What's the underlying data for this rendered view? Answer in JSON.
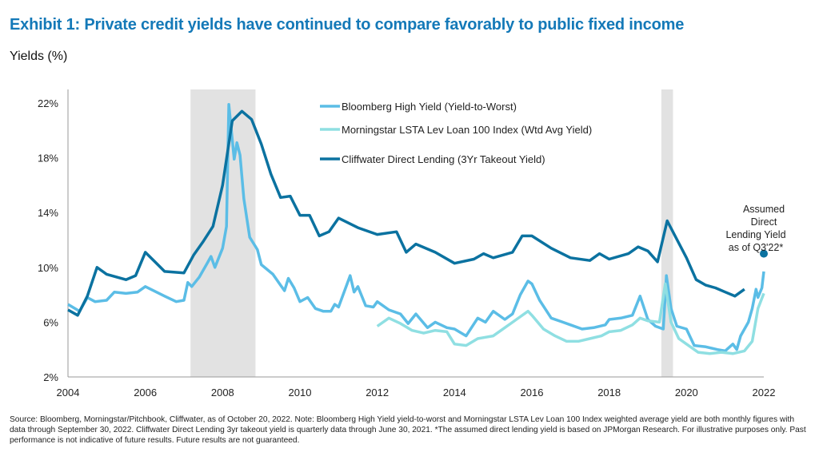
{
  "title": "Exhibit 1: Private credit yields have continued to compare favorably to public fixed income",
  "ylabel": "Yields (%)",
  "footnote": "Source: Bloomberg, Morningstar/Pitchbook, Cliffwater, as of October 20, 2022. Note: Bloomberg High Yield yield-to-worst and Morningstar LSTA Lev Loan 100 Index weighted average yield are both monthly figures with data through September 30, 2022. Cliffwater Direct Lending 3yr takeout yield is quarterly data through June 30, 2021. *The assumed direct lending yield is based on JPMorgan Research. For illustrative purposes only. Past performance is not indicative of future results. Future results are not guaranteed.",
  "chart_data": {
    "type": "line",
    "title": "Exhibit 1: Private credit yields have continued to compare favorably to public fixed income",
    "ylabel": "Yields (%)",
    "xlim": [
      2004,
      2022
    ],
    "ylim": [
      2,
      22
    ],
    "x_ticks": [
      "2004",
      "2006",
      "2008",
      "2010",
      "2012",
      "2014",
      "2016",
      "2018",
      "2020",
      "2022"
    ],
    "y_ticks": [
      "2%",
      "6%",
      "10%",
      "14%",
      "18%",
      "22%"
    ],
    "grid": false,
    "legend": "top-center",
    "shaded_periods": [
      [
        2007.17,
        2008.85
      ],
      [
        2019.35,
        2019.65
      ]
    ],
    "series": [
      {
        "name": "Bloomberg High Yield (Yield-to-Worst)",
        "color": "#5bbde6",
        "x": [
          2004.0,
          2004.3,
          2004.5,
          2004.7,
          2005.0,
          2005.2,
          2005.5,
          2005.8,
          2006.0,
          2006.5,
          2006.8,
          2007.0,
          2007.1,
          2007.2,
          2007.4,
          2007.6,
          2007.7,
          2007.8,
          2008.0,
          2008.1,
          2008.16,
          2008.3,
          2008.37,
          2008.45,
          2008.55,
          2008.7,
          2008.9,
          2009.0,
          2009.3,
          2009.5,
          2009.6,
          2009.7,
          2009.85,
          2010.0,
          2010.2,
          2010.4,
          2010.6,
          2010.8,
          2010.9,
          2011.0,
          2011.3,
          2011.4,
          2011.5,
          2011.7,
          2011.9,
          2012.0,
          2012.3,
          2012.6,
          2012.8,
          2013.0,
          2013.3,
          2013.5,
          2013.8,
          2014.0,
          2014.3,
          2014.6,
          2014.8,
          2015.0,
          2015.3,
          2015.5,
          2015.7,
          2015.9,
          2016.0,
          2016.2,
          2016.5,
          2016.8,
          2017.0,
          2017.3,
          2017.6,
          2017.9,
          2018.0,
          2018.3,
          2018.6,
          2018.8,
          2019.0,
          2019.2,
          2019.4,
          2019.48,
          2019.6,
          2019.75,
          2020.0,
          2020.2,
          2020.5,
          2020.8,
          2021.0,
          2021.2,
          2021.3,
          2021.4,
          2021.6,
          2021.7,
          2021.8,
          2021.85,
          2021.95,
          2022.0
        ],
        "values": [
          7.3,
          6.8,
          7.8,
          7.5,
          7.6,
          8.2,
          8.1,
          8.2,
          8.6,
          7.9,
          7.5,
          7.6,
          8.9,
          8.6,
          9.3,
          10.3,
          10.8,
          10.0,
          11.4,
          13.0,
          21.9,
          17.9,
          19.1,
          18.2,
          15.0,
          12.2,
          11.3,
          10.2,
          9.5,
          8.7,
          8.3,
          9.2,
          8.5,
          7.5,
          7.8,
          7.0,
          6.8,
          6.8,
          7.3,
          7.1,
          9.4,
          8.2,
          8.6,
          7.2,
          7.1,
          7.5,
          6.9,
          6.6,
          5.9,
          6.6,
          5.6,
          6.0,
          5.6,
          5.5,
          5.0,
          6.3,
          6.0,
          6.8,
          6.2,
          6.6,
          8.0,
          9.0,
          8.8,
          7.6,
          6.3,
          6.0,
          5.8,
          5.5,
          5.6,
          5.8,
          6.2,
          6.3,
          6.5,
          7.9,
          6.2,
          5.7,
          5.5,
          9.4,
          7.0,
          5.7,
          5.5,
          4.3,
          4.2,
          4.0,
          3.9,
          4.4,
          4.0,
          5.0,
          6.0,
          7.0,
          8.4,
          7.8,
          8.5,
          9.7
        ]
      },
      {
        "name": "Morningstar LSTA Lev Loan 100 Index (Wtd Avg Yield)",
        "color": "#8fdfe2",
        "x": [
          2012.0,
          2012.3,
          2012.6,
          2012.9,
          2013.2,
          2013.5,
          2013.8,
          2014.0,
          2014.3,
          2014.6,
          2014.8,
          2015.0,
          2015.3,
          2015.6,
          2015.9,
          2016.0,
          2016.3,
          2016.6,
          2016.9,
          2017.2,
          2017.5,
          2017.8,
          2018.0,
          2018.3,
          2018.6,
          2018.8,
          2019.0,
          2019.3,
          2019.45,
          2019.6,
          2019.8,
          2020.0,
          2020.3,
          2020.6,
          2020.9,
          2021.2,
          2021.5,
          2021.7,
          2021.85,
          2022.0
        ],
        "values": [
          5.7,
          6.3,
          5.9,
          5.4,
          5.2,
          5.4,
          5.3,
          4.4,
          4.3,
          4.8,
          4.9,
          5.0,
          5.6,
          6.2,
          6.8,
          6.5,
          5.5,
          5.0,
          4.6,
          4.6,
          4.8,
          5.0,
          5.3,
          5.4,
          5.8,
          6.3,
          6.1,
          6.0,
          8.8,
          6.0,
          4.8,
          4.4,
          3.8,
          3.7,
          3.8,
          3.7,
          3.9,
          4.6,
          7.0,
          8.1
        ]
      },
      {
        "name": "Cliffwater Direct Lending (3Yr Takeout Yield)",
        "color": "#0b72a0",
        "x": [
          2004.0,
          2004.25,
          2004.5,
          2004.75,
          2005.0,
          2005.25,
          2005.5,
          2005.75,
          2006.0,
          2006.25,
          2006.5,
          2007.0,
          2007.25,
          2007.5,
          2007.75,
          2008.0,
          2008.25,
          2008.5,
          2008.75,
          2009.0,
          2009.25,
          2009.5,
          2009.75,
          2010.0,
          2010.25,
          2010.5,
          2010.75,
          2011.0,
          2011.5,
          2012.0,
          2012.5,
          2012.75,
          2013.0,
          2013.5,
          2014.0,
          2014.5,
          2014.75,
          2015.0,
          2015.5,
          2015.75,
          2016.0,
          2016.5,
          2017.0,
          2017.5,
          2017.75,
          2018.0,
          2018.5,
          2018.75,
          2019.0,
          2019.25,
          2019.5,
          2020.0,
          2020.25,
          2020.5,
          2020.75,
          2021.0,
          2021.25,
          2021.5
        ],
        "values": [
          6.9,
          6.5,
          7.9,
          10.0,
          9.5,
          9.3,
          9.1,
          9.4,
          11.1,
          10.4,
          9.7,
          9.6,
          10.9,
          11.9,
          13.0,
          16.0,
          20.7,
          21.4,
          20.8,
          19.0,
          16.8,
          15.1,
          15.2,
          13.8,
          13.8,
          12.3,
          12.6,
          13.6,
          12.9,
          12.4,
          12.6,
          11.1,
          11.7,
          11.1,
          10.3,
          10.6,
          11.0,
          10.7,
          11.1,
          12.3,
          12.3,
          11.4,
          10.7,
          10.5,
          11.0,
          10.6,
          11.0,
          11.5,
          11.2,
          10.4,
          13.4,
          10.7,
          9.1,
          8.7,
          8.5,
          8.2,
          7.9,
          8.4
        ]
      }
    ],
    "annotations": [
      {
        "text": "Assumed Direct Lending Yield as of Q3'22*",
        "lines": [
          "Assumed",
          "Direct",
          "Lending Yield",
          "as of Q3'22*"
        ],
        "x": 2022.0,
        "y": 11.0,
        "color": "#0b72a0"
      }
    ]
  }
}
